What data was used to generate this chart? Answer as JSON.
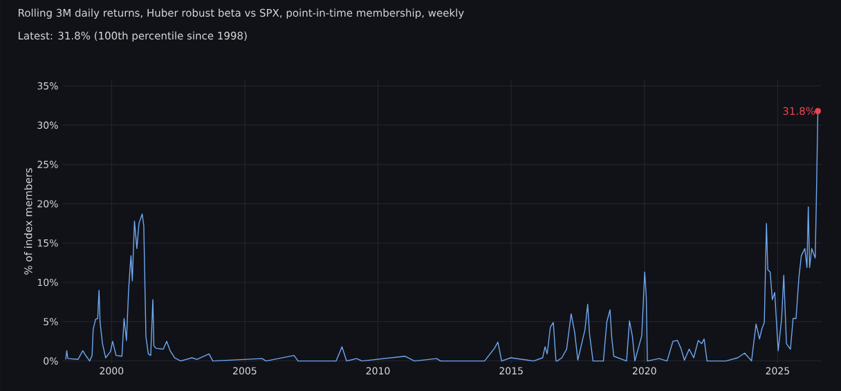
{
  "chart_data": {
    "type": "line",
    "title": "Rolling 3M daily returns, Huber robust beta vs SPX, point-in-time membership, weekly",
    "subtitle": "Latest: 31.8% (100th percentile since 1998)",
    "ylabel": "% of index members",
    "grid": true,
    "marker": "none",
    "line_style": "solid",
    "xlim": [
      1998.15,
      2026.65
    ],
    "ylim": [
      -0.3,
      35.8
    ],
    "xticks": [
      2000,
      2005,
      2010,
      2015,
      2020,
      2025
    ],
    "yticks": [
      {
        "value": 0,
        "label": "0%"
      },
      {
        "value": 5,
        "label": "5%"
      },
      {
        "value": 10,
        "label": "10%"
      },
      {
        "value": 15,
        "label": "15%"
      },
      {
        "value": 20,
        "label": "20%"
      },
      {
        "value": 25,
        "label": "25%"
      },
      {
        "value": 30,
        "label": "30%"
      },
      {
        "value": 35,
        "label": "35%"
      }
    ],
    "annotations": [
      {
        "text": "31.8%",
        "x": 2026.51,
        "y": 31.8
      }
    ],
    "series": [
      {
        "color": "#6ea8f0",
        "x": [
          1998.28,
          1998.32,
          1998.36,
          1998.74,
          1998.92,
          1999.05,
          1999.18,
          1999.27,
          1999.31,
          1999.4,
          1999.48,
          1999.53,
          1999.57,
          1999.66,
          1999.78,
          1999.96,
          2000.04,
          2000.17,
          2000.39,
          2000.47,
          2000.56,
          2000.64,
          2000.69,
          2000.73,
          2000.78,
          2000.86,
          2000.95,
          2001.03,
          2001.15,
          2001.21,
          2001.29,
          2001.38,
          2001.47,
          2001.55,
          2001.59,
          2001.68,
          2001.94,
          2002.07,
          2002.2,
          2002.37,
          2002.59,
          2003.02,
          2003.2,
          2003.66,
          2003.8,
          2005.65,
          2005.8,
          2006.85,
          2007.0,
          2008.43,
          2008.65,
          2008.82,
          2009.2,
          2009.4,
          2011.02,
          2011.37,
          2012.2,
          2012.35,
          2014.0,
          2014.37,
          2014.5,
          2014.64,
          2014.98,
          2015.84,
          2016.18,
          2016.27,
          2016.35,
          2016.47,
          2016.58,
          2016.68,
          2016.73,
          2016.9,
          2017.08,
          2017.25,
          2017.38,
          2017.5,
          2017.77,
          2017.87,
          2017.94,
          2018.07,
          2018.46,
          2018.59,
          2018.71,
          2018.77,
          2018.85,
          2019.33,
          2019.44,
          2019.55,
          2019.64,
          2019.9,
          2020.01,
          2020.07,
          2020.11,
          2020.55,
          2020.85,
          2021.07,
          2021.24,
          2021.37,
          2021.5,
          2021.68,
          2021.85,
          2022.02,
          2022.15,
          2022.24,
          2022.35,
          2023.06,
          2023.5,
          2023.76,
          2024.02,
          2024.19,
          2024.32,
          2024.41,
          2024.5,
          2024.58,
          2024.63,
          2024.72,
          2024.8,
          2024.89,
          2025.02,
          2025.15,
          2025.23,
          2025.33,
          2025.48,
          2025.58,
          2025.69,
          2025.8,
          2025.89,
          2026.02,
          2026.1,
          2026.15,
          2026.2,
          2026.28,
          2026.41,
          2026.45,
          2026.51
        ],
        "values": [
          0.2,
          1.3,
          0.3,
          0.2,
          1.3,
          0.6,
          0,
          0.7,
          4.0,
          5.3,
          5.4,
          9.0,
          4.9,
          2.2,
          0.4,
          1.2,
          2.5,
          0.7,
          0.6,
          5.4,
          2.6,
          9.0,
          11.6,
          13.4,
          10.2,
          17.8,
          14.3,
          17.5,
          18.7,
          17.2,
          3.1,
          0.9,
          0.7,
          7.8,
          1.9,
          1.6,
          1.5,
          2.5,
          1.3,
          0.4,
          0,
          0.4,
          0.2,
          0.9,
          0,
          0.3,
          0,
          0.7,
          0,
          0,
          1.8,
          0,
          0.3,
          0,
          0.6,
          0,
          0.3,
          0,
          0,
          1.6,
          2.4,
          0,
          0.4,
          0,
          0.4,
          1.8,
          0.9,
          4.3,
          4.9,
          0,
          0,
          0.4,
          1.5,
          6.0,
          3.7,
          0.1,
          4.0,
          7.2,
          3.4,
          0,
          0,
          5.0,
          6.5,
          3.1,
          0.6,
          0,
          5.1,
          3.1,
          0,
          3.2,
          11.3,
          8.2,
          0,
          0.3,
          0,
          2.5,
          2.6,
          1.6,
          0.1,
          1.5,
          0.4,
          2.6,
          2.2,
          2.8,
          0,
          0,
          0.4,
          1.0,
          0,
          4.7,
          2.8,
          4.1,
          4.9,
          17.5,
          11.6,
          11.3,
          7.8,
          8.7,
          1.3,
          5.4,
          10.9,
          2.2,
          1.5,
          5.4,
          5.4,
          10.7,
          13.4,
          14.3,
          11.9,
          19.6,
          11.9,
          14.3,
          13.1,
          19.9,
          31.8
        ]
      }
    ]
  }
}
